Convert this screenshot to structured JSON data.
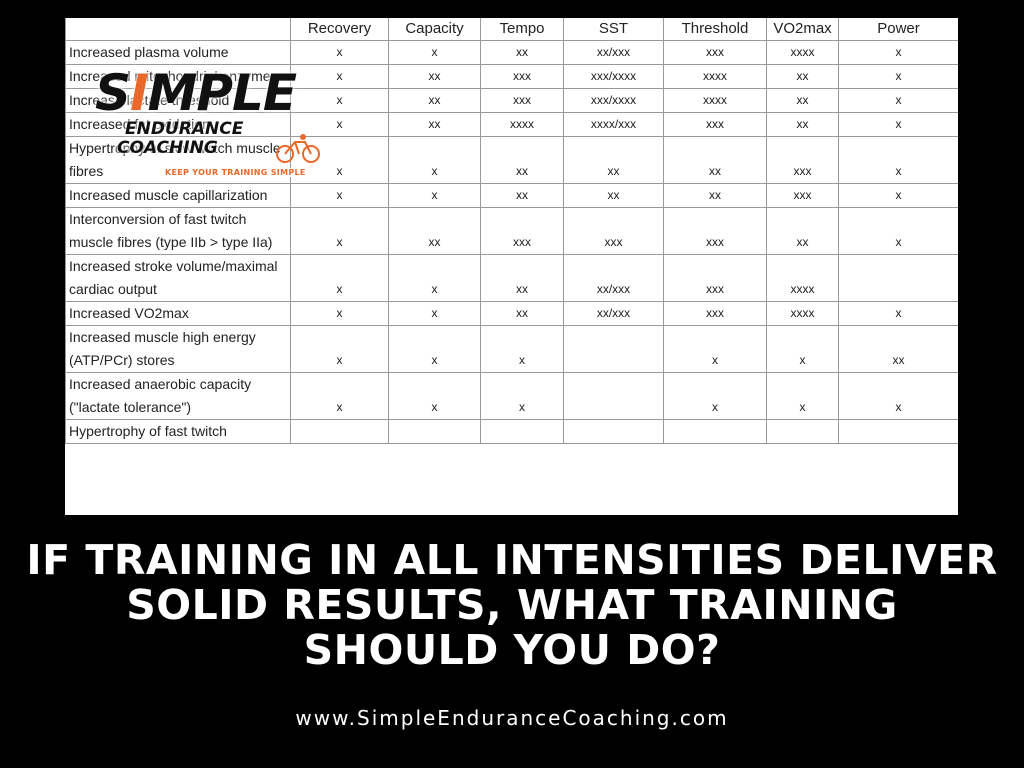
{
  "table": {
    "columns": [
      "Recovery",
      "Capacity",
      "Tempo",
      "SST",
      "Threshold",
      "VO2max",
      "Power"
    ],
    "rows": [
      {
        "label": "Increased plasma volume",
        "cells": [
          "x",
          "x",
          "xx",
          "xx/xxx",
          "xxx",
          "xxxx",
          "x"
        ]
      },
      {
        "label": "Increased mitochondrial enzymes",
        "cells": [
          "x",
          "xx",
          "xxx",
          "xxx/xxxx",
          "xxxx",
          "xx",
          "x"
        ]
      },
      {
        "label": "Increase lactate threshold",
        "cells": [
          "x",
          "xx",
          "xxx",
          "xxx/xxxx",
          "xxxx",
          "xx",
          "x"
        ]
      },
      {
        "label": "Increased fat oxidation",
        "cells": [
          "x",
          "xx",
          "xxxx",
          "xxxx/xxx",
          "xxx",
          "xx",
          "x"
        ]
      },
      {
        "label": "Hypertrophy of slow twitch muscle fibres",
        "cells": [
          "x",
          "x",
          "xx",
          "xx",
          "xx",
          "xxx",
          "x"
        ]
      },
      {
        "label": "Increased muscle capillarization",
        "cells": [
          "x",
          "x",
          "xx",
          "xx",
          "xx",
          "xxx",
          "x"
        ]
      },
      {
        "label": "Interconversion of fast twitch muscle fibres (type IIb > type IIa)",
        "cells": [
          "x",
          "xx",
          "xxx",
          "xxx",
          "xxx",
          "xx",
          "x"
        ]
      },
      {
        "label": "Increased stroke volume/maximal cardiac output",
        "cells": [
          "x",
          "x",
          "xx",
          "xx/xxx",
          "xxx",
          "xxxx",
          null
        ]
      },
      {
        "label": "Increased VO2max",
        "cells": [
          "x",
          "x",
          "xx",
          "xx/xxx",
          "xxx",
          "xxxx",
          "x"
        ]
      },
      {
        "label": "Increased muscle high energy (ATP/PCr) stores",
        "cells": [
          "x",
          "x",
          "x",
          null,
          "x",
          "x",
          "xx"
        ]
      },
      {
        "label": "Increased anaerobic capacity (\"lactate tolerance\")",
        "cells": [
          "x",
          "x",
          "x",
          null,
          "x",
          "x",
          "x"
        ]
      },
      {
        "label": "Hypertrophy of fast twitch",
        "cells": [
          null,
          null,
          null,
          null,
          null,
          null,
          null
        ]
      }
    ]
  },
  "logo": {
    "name_start": "S",
    "name_accent": "I",
    "name_end": "MPLE",
    "line1": "ENDURANCE",
    "line2": "COACHING",
    "tagline": "KEEP YOUR TRAINING SIMPLE"
  },
  "headline": [
    "IF TRAINING IN ALL INTENSITIES DELIVER",
    "SOLID RESULTS, WHAT TRAINING",
    "SHOULD YOU DO?"
  ],
  "url": "www.SimpleEnduranceCoaching.com"
}
